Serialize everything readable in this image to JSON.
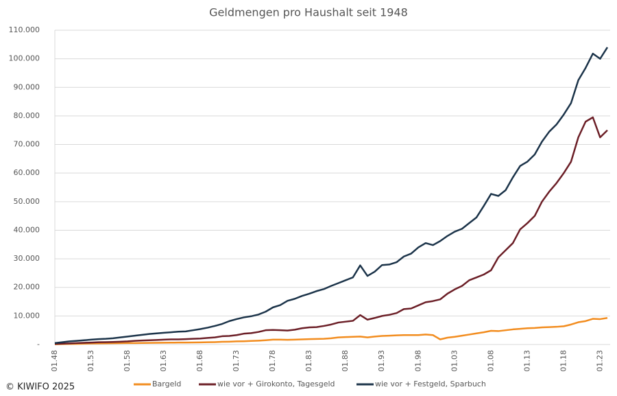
{
  "chart_data": {
    "type": "line",
    "title": "Geldmengen pro Haushalt seit 1948",
    "footer": "© KIWIFO 2025",
    "categories": [
      "01.48",
      null,
      null,
      null,
      null,
      "01.53",
      null,
      null,
      null,
      null,
      "01.58",
      null,
      null,
      null,
      null,
      "01.63",
      null,
      null,
      null,
      null,
      "01.68",
      null,
      null,
      null,
      null,
      "01.73",
      null,
      null,
      null,
      null,
      "01.78",
      null,
      null,
      null,
      null,
      "01.83",
      null,
      null,
      null,
      null,
      "01.88",
      null,
      null,
      null,
      null,
      "01.93",
      null,
      null,
      null,
      null,
      "01.98",
      null,
      null,
      null,
      null,
      "01.03",
      null,
      null,
      null,
      null,
      "01.08",
      null,
      null,
      null,
      null,
      "01.13",
      null,
      null,
      null,
      null,
      "01.18",
      null,
      null,
      null,
      null,
      "01.23",
      null
    ],
    "series": [
      {
        "name": "Bargeld",
        "color": "#f28c1e",
        "values": [
          100,
          150,
          200,
          250,
          300,
          350,
          400,
          420,
          450,
          480,
          500,
          520,
          550,
          580,
          600,
          620,
          650,
          680,
          700,
          720,
          750,
          800,
          850,
          950,
          1000,
          1100,
          1150,
          1250,
          1350,
          1500,
          1700,
          1700,
          1650,
          1700,
          1800,
          1900,
          1950,
          2000,
          2200,
          2500,
          2600,
          2700,
          2800,
          2500,
          2800,
          3000,
          3100,
          3200,
          3300,
          3300,
          3300,
          3500,
          3300,
          1800,
          2400,
          2700,
          3100,
          3500,
          3900,
          4300,
          4800,
          4700,
          5000,
          5300,
          5500,
          5700,
          5800,
          6000,
          6100,
          6200,
          6400,
          7000,
          7800,
          8200,
          9000,
          8900,
          9300
        ]
      },
      {
        "name": "wie vor + Girokonto, Tagesgeld",
        "color": "#6b1e26",
        "values": [
          200,
          300,
          400,
          500,
          600,
          700,
          800,
          850,
          900,
          1000,
          1100,
          1300,
          1400,
          1500,
          1600,
          1700,
          1800,
          1800,
          1900,
          2000,
          2100,
          2300,
          2500,
          2900,
          3000,
          3300,
          3800,
          4000,
          4400,
          5000,
          5100,
          5000,
          4900,
          5200,
          5700,
          6000,
          6100,
          6500,
          7000,
          7700,
          8000,
          8300,
          10300,
          8700,
          9300,
          10000,
          10400,
          11000,
          12400,
          12600,
          13700,
          14800,
          15200,
          15800,
          17800,
          19300,
          20500,
          22500,
          23500,
          24500,
          26000,
          30500,
          33000,
          35500,
          40300,
          42500,
          45000,
          50000,
          53500,
          56500,
          60000,
          64000,
          72500,
          78000,
          79500,
          72500,
          75000
        ]
      },
      {
        "name": "wie vor + Festgeld, Sparbuch",
        "color": "#1b3349",
        "values": [
          500,
          800,
          1100,
          1300,
          1500,
          1700,
          1900,
          2000,
          2200,
          2500,
          2800,
          3100,
          3400,
          3700,
          3900,
          4100,
          4300,
          4500,
          4600,
          5000,
          5400,
          5900,
          6500,
          7200,
          8200,
          8900,
          9500,
          9900,
          10500,
          11500,
          13000,
          13800,
          15300,
          16000,
          17000,
          17800,
          18700,
          19400,
          20500,
          21500,
          22500,
          23500,
          27700,
          24000,
          25500,
          27800,
          28000,
          28800,
          30800,
          31800,
          34000,
          35500,
          34800,
          36200,
          38000,
          39500,
          40500,
          42500,
          44500,
          48500,
          52700,
          52000,
          54000,
          58500,
          62500,
          64000,
          66500,
          71000,
          74500,
          77000,
          80500,
          84500,
          92500,
          96800,
          101800,
          100000,
          104000
        ]
      }
    ],
    "ylim": [
      0,
      110000
    ],
    "yticks": [
      {
        "value": 0,
        "label": "-"
      },
      {
        "value": 10000,
        "label": "10.000"
      },
      {
        "value": 20000,
        "label": "20.000"
      },
      {
        "value": 30000,
        "label": "30.000"
      },
      {
        "value": 40000,
        "label": "40.000"
      },
      {
        "value": 50000,
        "label": "50.000"
      },
      {
        "value": 60000,
        "label": "60.000"
      },
      {
        "value": 70000,
        "label": "70.000"
      },
      {
        "value": 80000,
        "label": "80.000"
      },
      {
        "value": 90000,
        "label": "90.000"
      },
      {
        "value": 100000,
        "label": "100.000"
      },
      {
        "value": 110000,
        "label": "110.000"
      }
    ],
    "grid": true
  }
}
